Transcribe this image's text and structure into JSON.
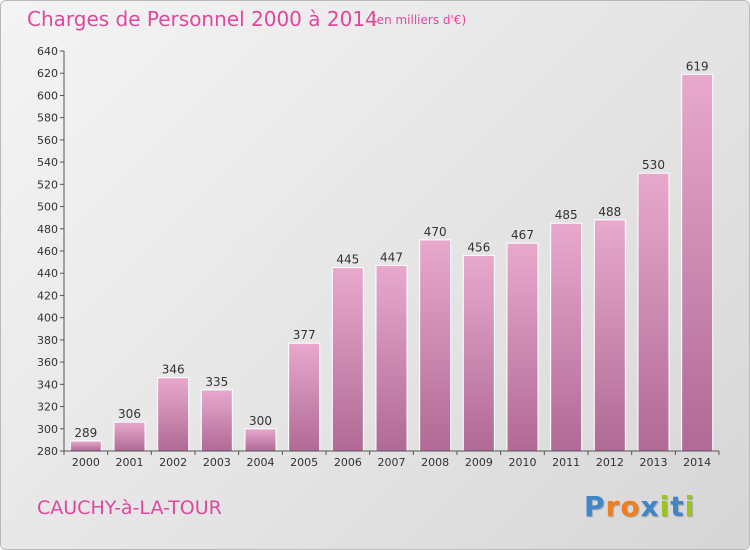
{
  "title": "Charges de Personnel 2000 à 2014",
  "unit_note": "(en milliers d'€)",
  "city": "CAUCHY-à-LA-TOUR",
  "logo": [
    "P",
    "r",
    "o",
    "x",
    "i",
    "t",
    "i"
  ],
  "colors": {
    "accent": "#e0479e",
    "bar_light": "#e8a9cd",
    "bar_dark": "#b06a95",
    "logo": [
      "#3f86c6",
      "#f07d1e",
      "#f07d1e",
      "#3f86c6",
      "#9cc21f",
      "#3f86c6",
      "#9cc21f"
    ]
  },
  "chart_data": {
    "type": "bar",
    "title": "Charges de Personnel 2000 à 2014",
    "ylabel": "",
    "xlabel": "",
    "categories": [
      "2000",
      "2001",
      "2002",
      "2003",
      "2004",
      "2005",
      "2006",
      "2007",
      "2008",
      "2009",
      "2010",
      "2011",
      "2012",
      "2013",
      "2014"
    ],
    "values": [
      289,
      306,
      346,
      335,
      300,
      377,
      445,
      447,
      470,
      456,
      467,
      485,
      488,
      530,
      619
    ],
    "ylim": [
      280,
      640
    ],
    "yticks": [
      280,
      300,
      320,
      340,
      360,
      380,
      400,
      420,
      440,
      460,
      480,
      500,
      520,
      540,
      560,
      580,
      600,
      620,
      640
    ],
    "grid": false
  }
}
